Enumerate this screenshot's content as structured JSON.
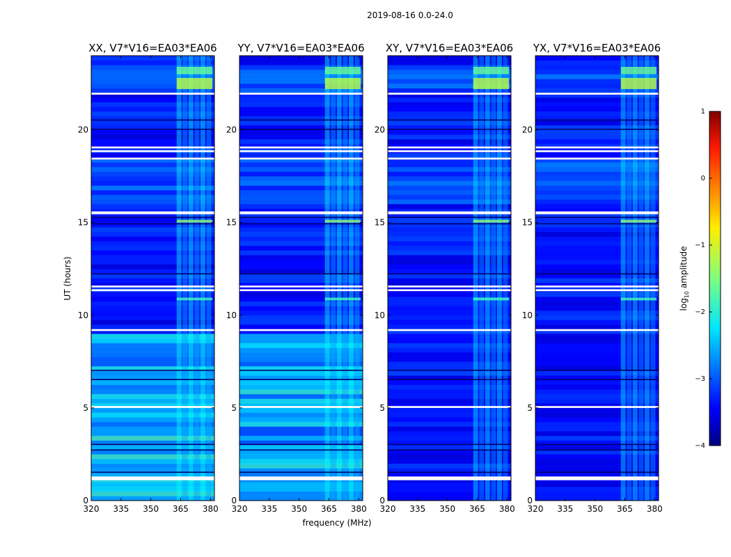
{
  "chart_data": {
    "type": "heatmap",
    "title": "2019-08-16 0.0-24.0",
    "xlabel": "frequency (MHz)",
    "ylabel": "UT (hours)",
    "x_range": [
      320,
      382
    ],
    "y_range": [
      0,
      24
    ],
    "x_ticks": [
      320,
      335,
      350,
      365,
      380
    ],
    "y_ticks": [
      0,
      5,
      10,
      15,
      20
    ],
    "colormap": "jet",
    "colorbar": {
      "label": "log",
      "label_sub": "10",
      "label_rest": " amplitude",
      "range": [
        -4,
        1
      ],
      "ticks": [
        -4,
        -3,
        -2,
        -1,
        0,
        1
      ],
      "tick_labels": [
        "−4",
        "−3",
        "−2",
        "−1",
        "0",
        "1"
      ]
    },
    "flagged_ut_hours": [
      1.1,
      1.2,
      5.0,
      9.15,
      11.3,
      11.5,
      15.45,
      15.5,
      18.4,
      18.8,
      19.0,
      21.9
    ],
    "bright_band_mhz": [
      363,
      381
    ],
    "panels": [
      {
        "title": "XX, V7*V16=EA03*EA06",
        "polarization": "XX",
        "background_log_amp": -3.3,
        "band_log_amp": -2.2,
        "strong_low_ut_stripes": true
      },
      {
        "title": "YY, V7*V16=EA03*EA06",
        "polarization": "YY",
        "background_log_amp": -3.3,
        "band_log_amp": -2.2,
        "strong_low_ut_stripes": true
      },
      {
        "title": "XY, V7*V16=EA03*EA06",
        "polarization": "XY",
        "background_log_amp": -3.3,
        "band_log_amp": -2.3,
        "strong_low_ut_stripes": false
      },
      {
        "title": "YX, V7*V16=EA03*EA06",
        "polarization": "YX",
        "background_log_amp": -3.3,
        "band_log_amp": -2.3,
        "strong_low_ut_stripes": false
      }
    ]
  }
}
